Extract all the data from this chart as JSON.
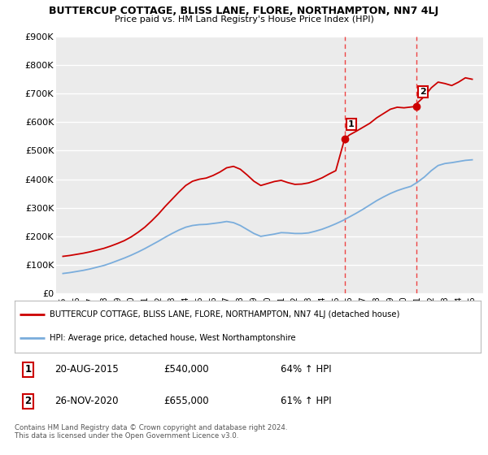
{
  "title": "BUTTERCUP COTTAGE, BLISS LANE, FLORE, NORTHAMPTON, NN7 4LJ",
  "subtitle": "Price paid vs. HM Land Registry's House Price Index (HPI)",
  "legend_line1": "BUTTERCUP COTTAGE, BLISS LANE, FLORE, NORTHAMPTON, NN7 4LJ (detached house)",
  "legend_line2": "HPI: Average price, detached house, West Northamptonshire",
  "sale1_date": "20-AUG-2015",
  "sale1_price": "£540,000",
  "sale1_hpi": "64% ↑ HPI",
  "sale2_date": "26-NOV-2020",
  "sale2_price": "£655,000",
  "sale2_hpi": "61% ↑ HPI",
  "footer": "Contains HM Land Registry data © Crown copyright and database right 2024.\nThis data is licensed under the Open Government Licence v3.0.",
  "ylim": [
    0,
    900000
  ],
  "yticks": [
    0,
    100000,
    200000,
    300000,
    400000,
    500000,
    600000,
    700000,
    800000,
    900000
  ],
  "ytick_labels": [
    "£0",
    "£100K",
    "£200K",
    "£300K",
    "£400K",
    "£500K",
    "£600K",
    "£700K",
    "£800K",
    "£900K"
  ],
  "red_color": "#cc0000",
  "blue_color": "#7aaddc",
  "vline_color": "#ee4444",
  "background_color": "#ffffff",
  "plot_bg_color": "#ebebeb",
  "grid_color": "#ffffff",
  "sale1_x": 2015.64,
  "sale2_x": 2020.91,
  "sale1_y": 540000,
  "sale2_y": 655000,
  "xlim": [
    1994.5,
    2025.8
  ],
  "red_years": [
    1995.0,
    1995.5,
    1996.0,
    1996.5,
    1997.0,
    1997.5,
    1998.0,
    1998.5,
    1999.0,
    1999.5,
    2000.0,
    2000.5,
    2001.0,
    2001.5,
    2002.0,
    2002.5,
    2003.0,
    2003.5,
    2004.0,
    2004.5,
    2005.0,
    2005.5,
    2006.0,
    2006.5,
    2007.0,
    2007.5,
    2008.0,
    2008.5,
    2009.0,
    2009.5,
    2010.0,
    2010.5,
    2011.0,
    2011.5,
    2012.0,
    2012.5,
    2013.0,
    2013.5,
    2014.0,
    2014.5,
    2015.0,
    2015.64,
    2016.0,
    2016.5,
    2017.0,
    2017.5,
    2018.0,
    2018.5,
    2019.0,
    2019.5,
    2020.0,
    2020.91,
    2021.0,
    2021.5,
    2022.0,
    2022.5,
    2023.0,
    2023.5,
    2024.0,
    2024.5,
    2025.0
  ],
  "red_values": [
    130000,
    133000,
    137000,
    141000,
    146000,
    152000,
    158000,
    166000,
    175000,
    185000,
    198000,
    214000,
    232000,
    254000,
    278000,
    305000,
    330000,
    355000,
    378000,
    393000,
    400000,
    404000,
    413000,
    425000,
    440000,
    445000,
    435000,
    415000,
    393000,
    378000,
    385000,
    392000,
    396000,
    388000,
    382000,
    383000,
    387000,
    395000,
    405000,
    418000,
    430000,
    540000,
    555000,
    568000,
    582000,
    596000,
    615000,
    630000,
    645000,
    652000,
    650000,
    655000,
    668000,
    690000,
    720000,
    740000,
    735000,
    728000,
    740000,
    755000,
    750000
  ],
  "blue_years": [
    1995.0,
    1995.5,
    1996.0,
    1996.5,
    1997.0,
    1997.5,
    1998.0,
    1998.5,
    1999.0,
    1999.5,
    2000.0,
    2000.5,
    2001.0,
    2001.5,
    2002.0,
    2002.5,
    2003.0,
    2003.5,
    2004.0,
    2004.5,
    2005.0,
    2005.5,
    2006.0,
    2006.5,
    2007.0,
    2007.5,
    2008.0,
    2008.5,
    2009.0,
    2009.5,
    2010.0,
    2010.5,
    2011.0,
    2011.5,
    2012.0,
    2012.5,
    2013.0,
    2013.5,
    2014.0,
    2014.5,
    2015.0,
    2015.5,
    2016.0,
    2016.5,
    2017.0,
    2017.5,
    2018.0,
    2018.5,
    2019.0,
    2019.5,
    2020.0,
    2020.5,
    2021.0,
    2021.5,
    2022.0,
    2022.5,
    2023.0,
    2023.5,
    2024.0,
    2024.5,
    2025.0
  ],
  "blue_values": [
    70000,
    73000,
    77000,
    81000,
    86000,
    92000,
    98000,
    106000,
    115000,
    124000,
    134000,
    145000,
    157000,
    170000,
    183000,
    197000,
    210000,
    222000,
    232000,
    238000,
    241000,
    242000,
    245000,
    248000,
    252000,
    248000,
    238000,
    224000,
    210000,
    200000,
    204000,
    208000,
    213000,
    212000,
    210000,
    210000,
    212000,
    218000,
    225000,
    234000,
    244000,
    255000,
    268000,
    281000,
    295000,
    310000,
    325000,
    338000,
    350000,
    360000,
    368000,
    375000,
    390000,
    408000,
    430000,
    448000,
    455000,
    458000,
    462000,
    466000,
    468000
  ],
  "xtick_years": [
    1995,
    1996,
    1997,
    1998,
    1999,
    2000,
    2001,
    2002,
    2003,
    2004,
    2005,
    2006,
    2007,
    2008,
    2009,
    2010,
    2011,
    2012,
    2013,
    2014,
    2015,
    2016,
    2017,
    2018,
    2019,
    2020,
    2021,
    2022,
    2023,
    2024,
    2025
  ]
}
